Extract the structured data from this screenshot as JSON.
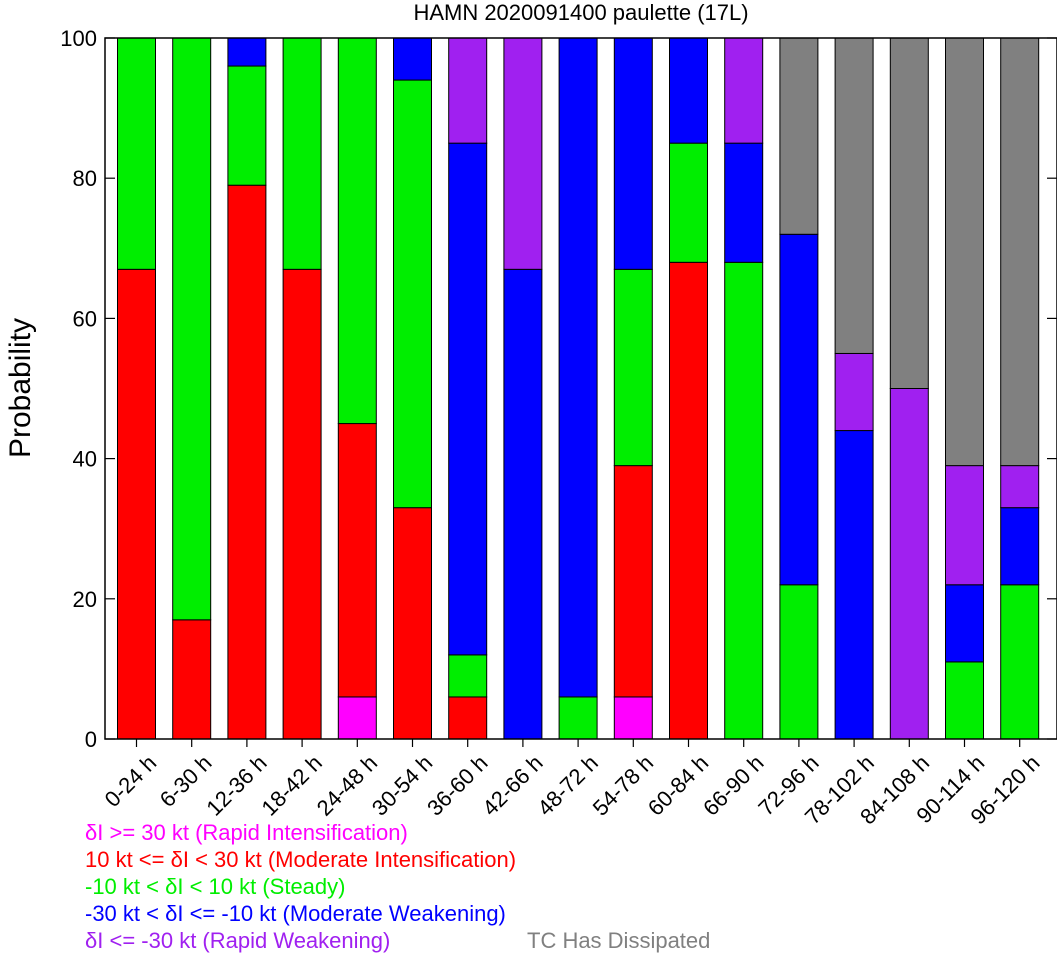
{
  "chart_data": {
    "type": "bar",
    "stacked": true,
    "title": "HAMN 2020091400 paulette (17L)",
    "xlabel": "",
    "ylabel": "Probability",
    "ylim": [
      0,
      100
    ],
    "yticks": [
      0,
      20,
      40,
      60,
      80,
      100
    ],
    "grid": false,
    "categories": [
      "0-24 h",
      "6-30 h",
      "12-36 h",
      "18-42 h",
      "24-48 h",
      "30-54 h",
      "36-60 h",
      "42-66 h",
      "48-72 h",
      "54-78 h",
      "60-84 h",
      "66-90 h",
      "72-96 h",
      "78-102 h",
      "84-108 h",
      "90-114 h",
      "96-120 h"
    ],
    "series": [
      {
        "name": "δI >= 30 kt (Rapid Intensification)",
        "color": "#ff00ff",
        "values": [
          0,
          0,
          0,
          0,
          6,
          0,
          0,
          0,
          0,
          6,
          0,
          0,
          0,
          0,
          0,
          0,
          0
        ]
      },
      {
        "name": "10 kt <= δI < 30 kt (Moderate Intensification)",
        "color": "#ff0000",
        "values": [
          67,
          17,
          79,
          67,
          39,
          33,
          6,
          0,
          0,
          33,
          68,
          0,
          0,
          0,
          0,
          0,
          0
        ]
      },
      {
        "name": "-10 kt < δI < 10 kt (Steady)",
        "color": "#00ee00",
        "values": [
          33,
          83,
          17,
          33,
          55,
          61,
          6,
          0,
          6,
          28,
          17,
          68,
          22,
          0,
          0,
          11,
          22
        ]
      },
      {
        "name": "-30 kt < δI <= -10 kt (Moderate Weakening)",
        "color": "#0000ff",
        "values": [
          0,
          0,
          4,
          0,
          0,
          6,
          73,
          67,
          94,
          33,
          15,
          17,
          50,
          44,
          0,
          11,
          11
        ]
      },
      {
        "name": "δI <= -30 kt (Rapid Weakening)",
        "color": "#a020f0",
        "values": [
          0,
          0,
          0,
          0,
          0,
          0,
          15,
          33,
          0,
          0,
          0,
          15,
          0,
          11,
          50,
          17,
          6
        ]
      },
      {
        "name": "TC Has Dissipated",
        "color": "#808080",
        "values": [
          0,
          0,
          0,
          0,
          0,
          0,
          0,
          0,
          0,
          0,
          0,
          0,
          28,
          45,
          50,
          61,
          61
        ]
      }
    ]
  }
}
